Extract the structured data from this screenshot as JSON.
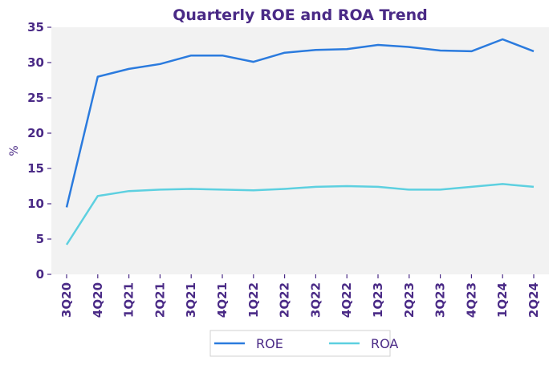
{
  "chart_data": {
    "type": "line",
    "title": "Quarterly ROE and ROA Trend",
    "xlabel": "",
    "ylabel": "%",
    "ylim": [
      0,
      35
    ],
    "yticks": [
      0,
      5,
      10,
      15,
      20,
      25,
      30,
      35
    ],
    "grid": false,
    "legend_position": "bottom-center",
    "categories": [
      "3Q20",
      "4Q20",
      "1Q21",
      "2Q21",
      "3Q21",
      "4Q21",
      "1Q22",
      "2Q22",
      "3Q22",
      "4Q22",
      "1Q23",
      "2Q23",
      "3Q23",
      "4Q23",
      "1Q24",
      "2Q24"
    ],
    "series": [
      {
        "name": "ROE",
        "color": "#2b7bde",
        "values": [
          9.5,
          28.0,
          29.1,
          29.8,
          31.0,
          31.0,
          30.1,
          31.4,
          31.8,
          31.9,
          32.5,
          32.2,
          31.7,
          31.6,
          33.3,
          31.6
        ]
      },
      {
        "name": "ROA",
        "color": "#5dd0e0",
        "values": [
          4.2,
          11.1,
          11.8,
          12.0,
          12.1,
          12.0,
          11.9,
          12.1,
          12.4,
          12.5,
          12.4,
          12.0,
          12.0,
          12.4,
          12.8,
          12.4
        ]
      }
    ],
    "colors": {
      "text": "#4a2a86",
      "plot_background": "#f2f2f2"
    }
  }
}
